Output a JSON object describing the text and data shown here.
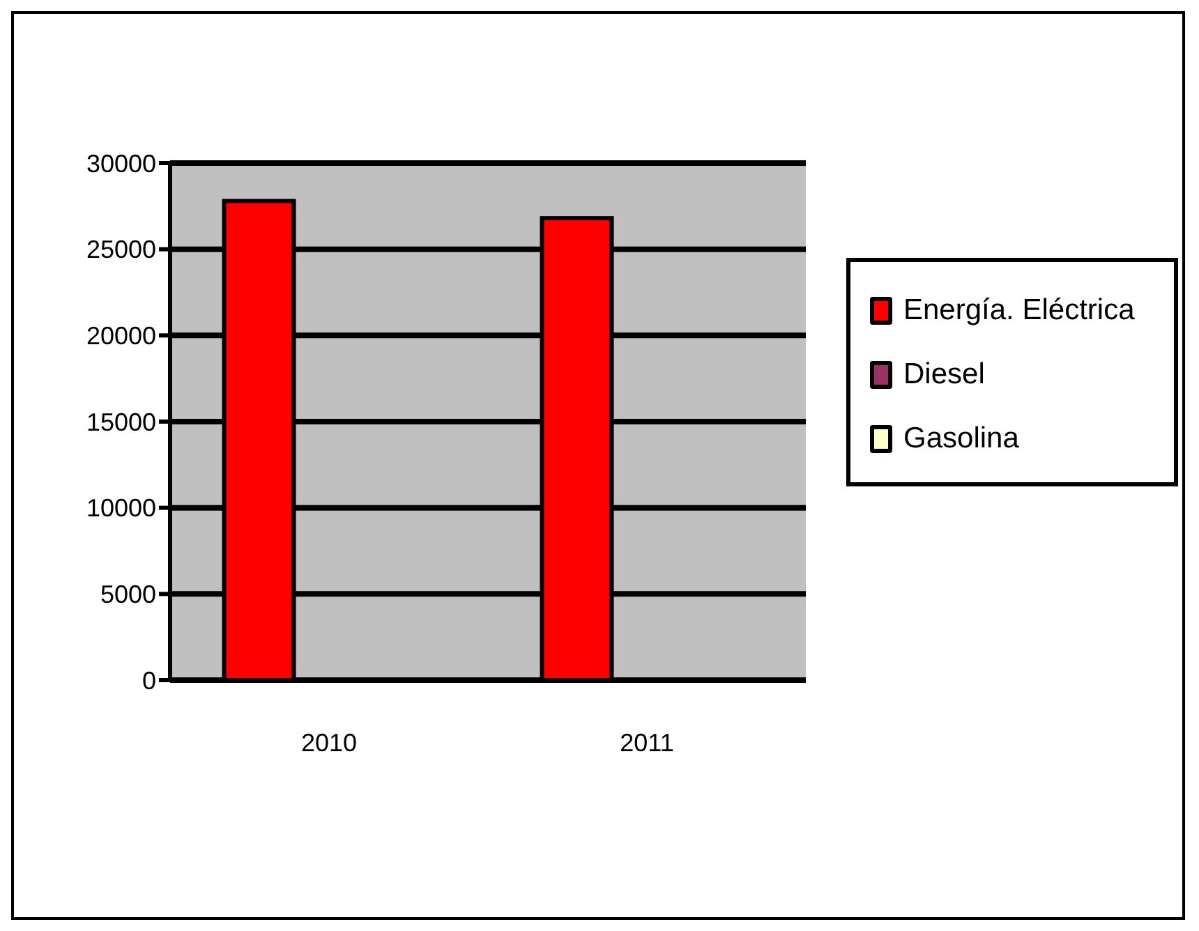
{
  "chart_data": {
    "type": "bar",
    "categories": [
      "2010",
      "2011"
    ],
    "series": [
      {
        "name": "Energía. Eléctrica",
        "color": "#ff0000",
        "values": [
          27800,
          26800
        ]
      },
      {
        "name": "Diesel",
        "color": "#993366",
        "values": [
          null,
          null
        ]
      },
      {
        "name": "Gasolina",
        "color": "#ffffcc",
        "values": [
          null,
          null
        ]
      }
    ],
    "ylim": [
      0,
      30000
    ],
    "yticks": [
      0,
      5000,
      10000,
      15000,
      20000,
      25000,
      30000
    ],
    "grid": "y",
    "legend": "right"
  }
}
